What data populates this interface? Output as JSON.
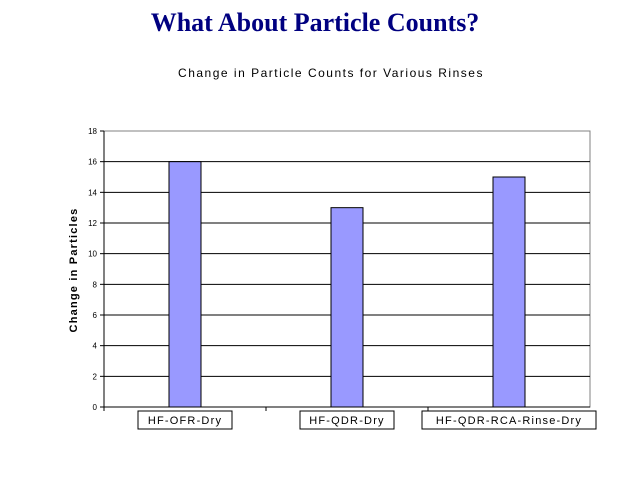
{
  "slide": {
    "title": "What About Particle Counts?"
  },
  "chart_data": {
    "type": "bar",
    "title": "Change in Particle Counts for Various Rinses",
    "xlabel": "",
    "ylabel": "Change in Particles",
    "categories": [
      "HF-OFR-Dry",
      "HF-QDR-Dry",
      "HF-QDR-RCA-Rinse-Dry"
    ],
    "values": [
      16,
      13,
      15
    ],
    "ylim": [
      0,
      18
    ],
    "yticks": [
      0,
      2,
      4,
      6,
      8,
      10,
      12,
      14,
      16,
      18
    ],
    "grid": true,
    "legend": "none",
    "colors": {
      "bar": "#9999FF",
      "bar_stroke": "#000000",
      "grid": "#000000"
    }
  }
}
